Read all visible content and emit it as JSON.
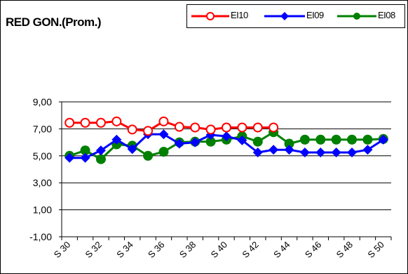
{
  "chart_data": {
    "type": "line",
    "title": "RED GON.(Prom.)",
    "xlabel": "",
    "ylabel": "",
    "ylim": [
      -1,
      9
    ],
    "yticks": [
      "-1,00",
      "1,00",
      "3,00",
      "5,00",
      "7,00",
      "9,00"
    ],
    "ytick_values": [
      -1,
      1,
      3,
      5,
      7,
      9
    ],
    "grid": "horizontal",
    "legend_position": "top-right",
    "x_tick_labels": [
      "S 30",
      "S 32",
      "S 34",
      "S 36",
      "S 38",
      "S 40",
      "S 42",
      "S 44",
      "S 46",
      "S 48",
      "S 50"
    ],
    "x": [
      30,
      31,
      32,
      33,
      34,
      35,
      36,
      37,
      38,
      39,
      40,
      41,
      42,
      43,
      44,
      45,
      46,
      47,
      48,
      49,
      50
    ],
    "series": [
      {
        "name": "EI10",
        "color": "#ff0000",
        "marker": "circle-open",
        "values": [
          7.45,
          7.45,
          7.45,
          7.55,
          6.95,
          6.85,
          7.55,
          7.15,
          7.1,
          6.95,
          7.1,
          7.1,
          7.1,
          7.1,
          null,
          null,
          null,
          null,
          null,
          null,
          null
        ]
      },
      {
        "name": "EI09",
        "color": "#0000ff",
        "marker": "diamond",
        "values": [
          4.85,
          4.85,
          5.4,
          6.2,
          5.5,
          6.6,
          6.6,
          5.9,
          6.0,
          6.55,
          6.45,
          6.15,
          5.25,
          5.45,
          5.45,
          5.25,
          5.25,
          5.25,
          5.25,
          5.45,
          6.2
        ]
      },
      {
        "name": "EI08",
        "color": "#008000",
        "marker": "circle",
        "values": [
          5.0,
          5.4,
          4.75,
          5.85,
          5.75,
          5.0,
          5.3,
          6.0,
          6.05,
          6.05,
          6.2,
          6.45,
          6.05,
          6.75,
          5.9,
          6.2,
          6.2,
          6.2,
          6.2,
          6.2,
          6.25
        ]
      }
    ]
  }
}
